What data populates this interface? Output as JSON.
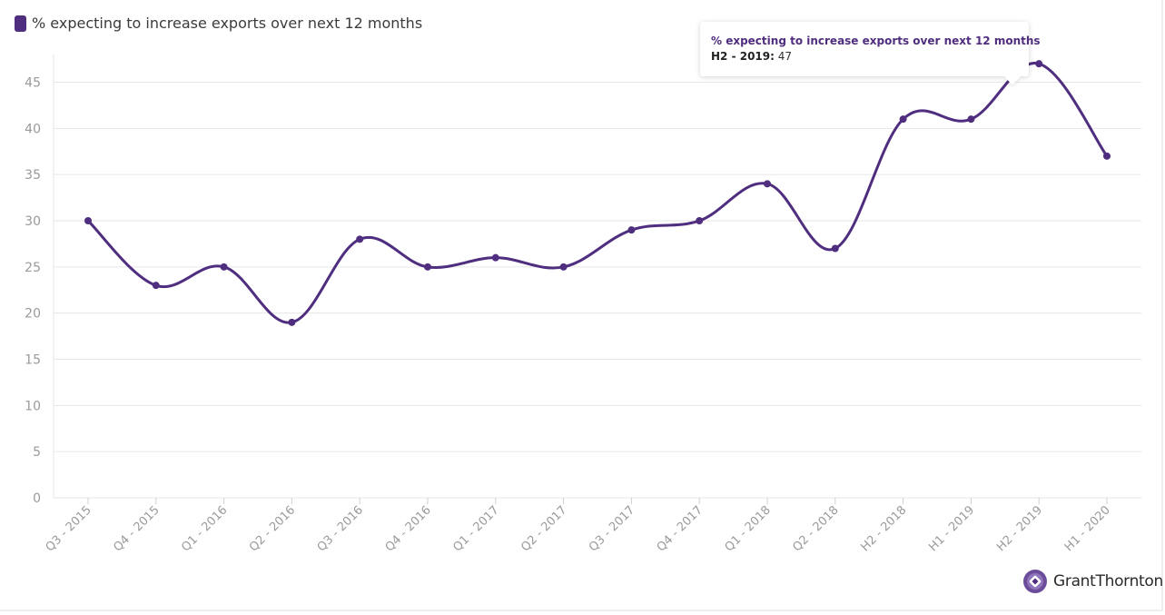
{
  "legend": {
    "label": "% expecting to increase exports over next 12 months"
  },
  "tooltip": {
    "title": "% expecting to increase exports over next 12 months",
    "category": "H2 - 2019:",
    "value": "47"
  },
  "brand": {
    "name": "GrantThornton",
    "icon": "grant-thornton-logo-icon"
  },
  "colors": {
    "series": "#4f2d7f",
    "grid": "#e6e6e6",
    "tick": "#9a9a9a"
  },
  "chart_data": {
    "type": "line",
    "title": "",
    "xlabel": "",
    "ylabel": "",
    "ylim": [
      0,
      48
    ],
    "yticks": [
      0,
      5,
      10,
      15,
      20,
      25,
      30,
      35,
      40,
      45
    ],
    "grid": true,
    "legend_position": "top-left",
    "categories": [
      "Q3 - 2015",
      "Q4 - 2015",
      "Q1 - 2016",
      "Q2 - 2016",
      "Q3 - 2016",
      "Q4 - 2016",
      "Q1 - 2017",
      "Q2 - 2017",
      "Q3 - 2017",
      "Q4 - 2017",
      "Q1 - 2018",
      "Q2 - 2018",
      "H2 - 2018",
      "H1 - 2019",
      "H2 - 2019",
      "H1 - 2020"
    ],
    "series": [
      {
        "name": "% expecting to increase exports over next 12 months",
        "values": [
          30,
          23,
          25,
          19,
          28,
          25,
          26,
          25,
          29,
          30,
          34,
          27,
          41,
          41,
          47,
          37
        ]
      }
    ]
  }
}
